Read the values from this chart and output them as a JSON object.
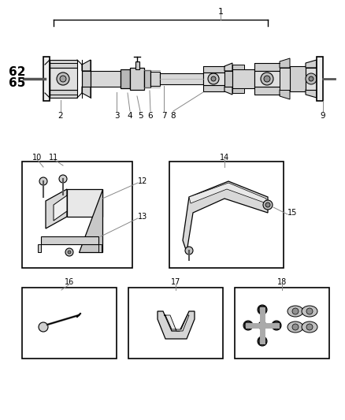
{
  "background_color": "#ffffff",
  "fig_width": 4.38,
  "fig_height": 5.33,
  "dpi": 100
}
